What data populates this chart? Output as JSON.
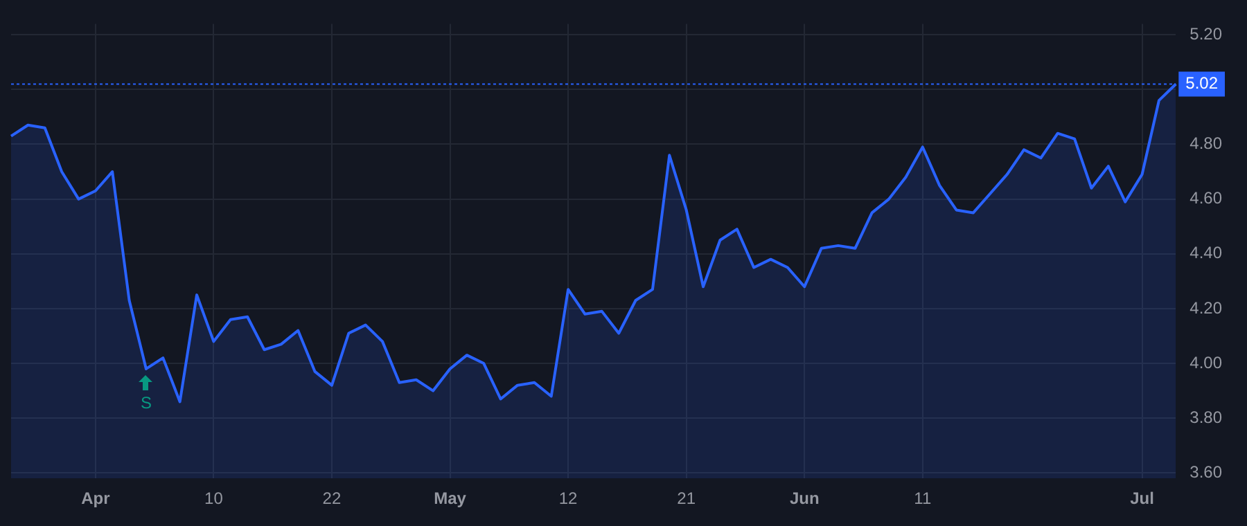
{
  "chart_data": {
    "type": "area",
    "categories": [
      null,
      null,
      null,
      null,
      null,
      "Apr",
      null,
      null,
      null,
      null,
      null,
      null,
      "10",
      null,
      null,
      null,
      null,
      null,
      null,
      "22",
      null,
      null,
      null,
      null,
      null,
      null,
      "May",
      null,
      null,
      null,
      null,
      null,
      null,
      "12",
      null,
      null,
      null,
      null,
      null,
      null,
      "21",
      null,
      null,
      null,
      null,
      null,
      null,
      "Jun",
      null,
      null,
      null,
      null,
      null,
      null,
      "11",
      null,
      null,
      null,
      null,
      null,
      null,
      null,
      null,
      null,
      null,
      null,
      null,
      "Jul",
      null,
      null
    ],
    "series": [
      {
        "color": "#2962ff",
        "values": [
          4.83,
          4.87,
          4.86,
          4.7,
          4.6,
          4.63,
          4.7,
          4.23,
          3.98,
          4.02,
          3.86,
          4.25,
          4.08,
          4.16,
          4.17,
          4.05,
          4.07,
          4.12,
          3.97,
          3.92,
          4.11,
          4.14,
          4.08,
          3.93,
          3.94,
          3.9,
          3.98,
          4.03,
          4.0,
          3.87,
          3.92,
          3.93,
          3.88,
          4.27,
          4.18,
          4.19,
          4.11,
          4.23,
          4.27,
          4.76,
          4.56,
          4.28,
          4.45,
          4.49,
          4.35,
          4.38,
          4.35,
          4.28,
          4.42,
          4.43,
          4.42,
          4.55,
          4.6,
          4.68,
          4.79,
          4.65,
          4.56,
          4.55,
          4.62,
          4.69,
          4.78,
          4.75,
          4.84,
          4.82,
          4.64,
          4.72,
          4.59,
          4.69,
          4.96,
          5.02
        ]
      }
    ],
    "ylim": [
      3.58,
      5.24
    ],
    "yticks": [
      {
        "value": 3.6,
        "label": "3.60"
      },
      {
        "value": 3.8,
        "label": "3.80"
      },
      {
        "value": 4.0,
        "label": "4.00"
      },
      {
        "value": 4.2,
        "label": "4.20"
      },
      {
        "value": 4.4,
        "label": "4.40"
      },
      {
        "value": 4.6,
        "label": "4.60"
      },
      {
        "value": 4.8,
        "label": "4.80"
      },
      {
        "value": 5.0,
        "label": null
      },
      {
        "value": 5.2,
        "label": "5.20"
      }
    ],
    "ref_lines": [
      {
        "axis": "y",
        "value": 5.02,
        "label": "5.02",
        "color": "#2962ff",
        "line_style": "dotted"
      }
    ],
    "annotations": [
      {
        "text": "S",
        "y": 3.98
      }
    ],
    "grid": true,
    "legend": false
  }
}
